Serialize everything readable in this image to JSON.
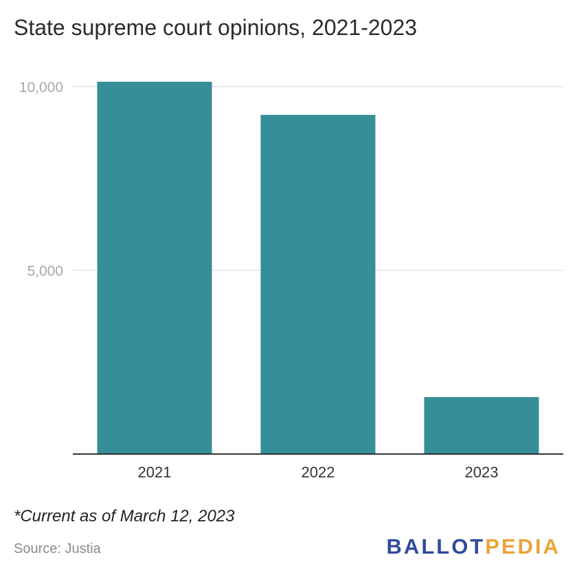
{
  "chart_data": {
    "type": "bar",
    "title": "State supreme court opinions, 2021-2023",
    "categories": [
      "2021",
      "2022",
      "2023"
    ],
    "values": [
      10130,
      9230,
      1550
    ],
    "ylim": [
      0,
      10000
    ],
    "yticks": [
      5000,
      10000
    ],
    "ytick_labels": [
      "5,000",
      "10,000"
    ],
    "grid": true,
    "bar_color": "#368e99",
    "note": "*Current as of March 12, 2023",
    "source": "Source: Justia"
  },
  "branding": {
    "logo_part1": "BALLOT",
    "logo_part2": "PEDIA",
    "logo_color1": "#2f4b9a",
    "logo_color2": "#e9a43a"
  }
}
